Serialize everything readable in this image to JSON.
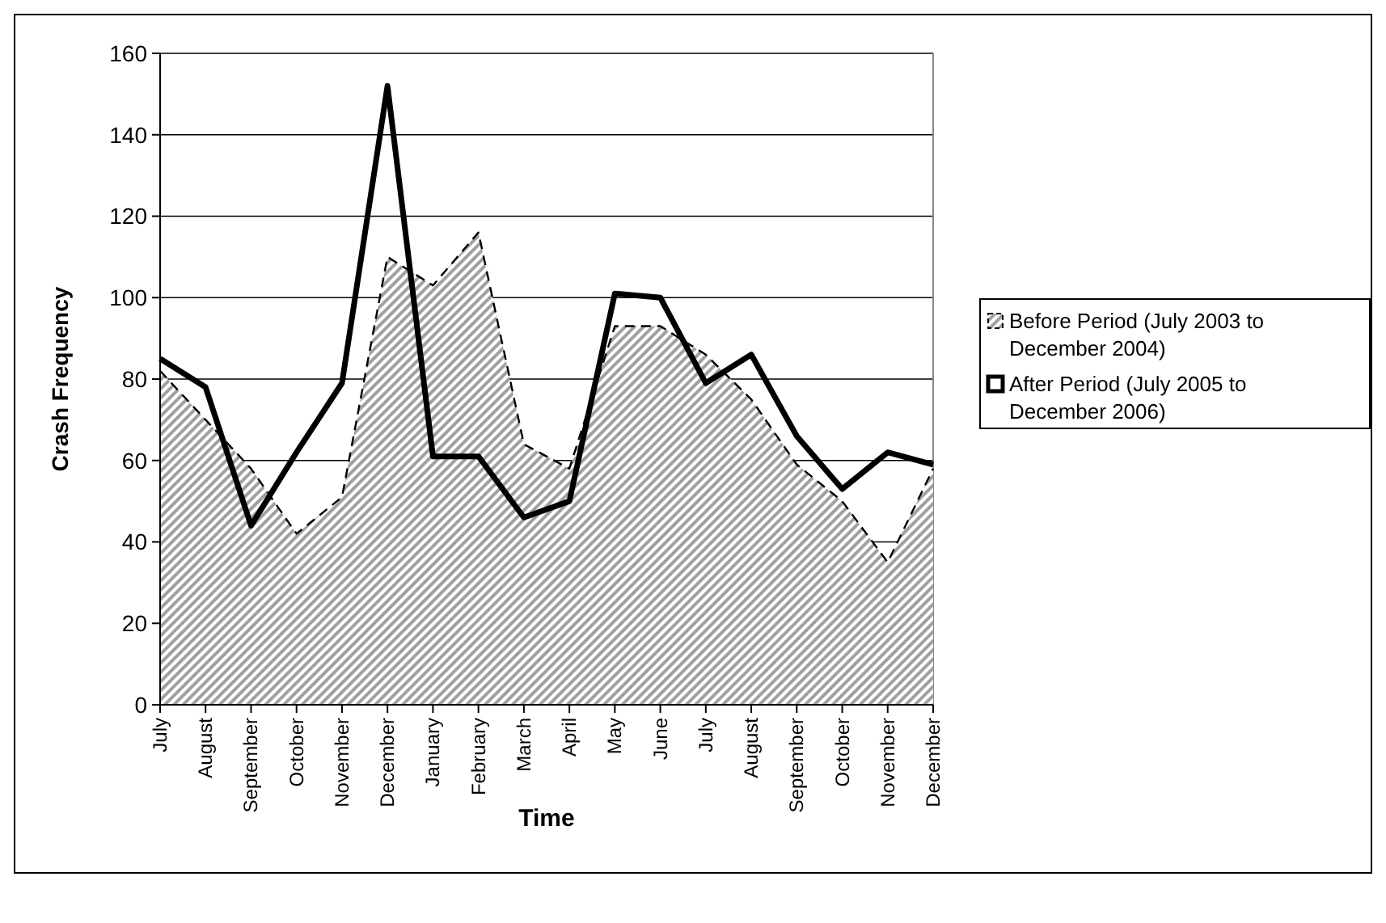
{
  "chart_data": {
    "type": "line",
    "xlabel": "Time",
    "ylabel": "Crash Frequency",
    "categories": [
      "July",
      "August",
      "September",
      "October",
      "November",
      "December",
      "January",
      "February",
      "March",
      "April",
      "May",
      "June",
      "July",
      "August",
      "September",
      "October",
      "November",
      "December"
    ],
    "series": [
      {
        "name": "Before Period (July 2003 to December 2004)",
        "type": "area",
        "color": "#a0a0a0",
        "line_style": "dashed",
        "values": [
          82,
          70,
          58,
          42,
          51,
          110,
          103,
          116,
          64,
          58,
          93,
          93,
          86,
          75,
          59,
          50,
          35,
          58
        ]
      },
      {
        "name": "After Period (July 2005 to December 2006)",
        "color": "#000000",
        "line_style": "solid",
        "values": [
          85,
          78,
          44,
          62,
          79,
          152,
          61,
          61,
          46,
          50,
          101,
          100,
          79,
          86,
          66,
          53,
          62,
          59
        ]
      }
    ],
    "ylim": [
      0,
      160
    ],
    "yticks": [
      0,
      20,
      40,
      60,
      80,
      100,
      120,
      140,
      160
    ],
    "grid": "y",
    "legend": "right"
  }
}
